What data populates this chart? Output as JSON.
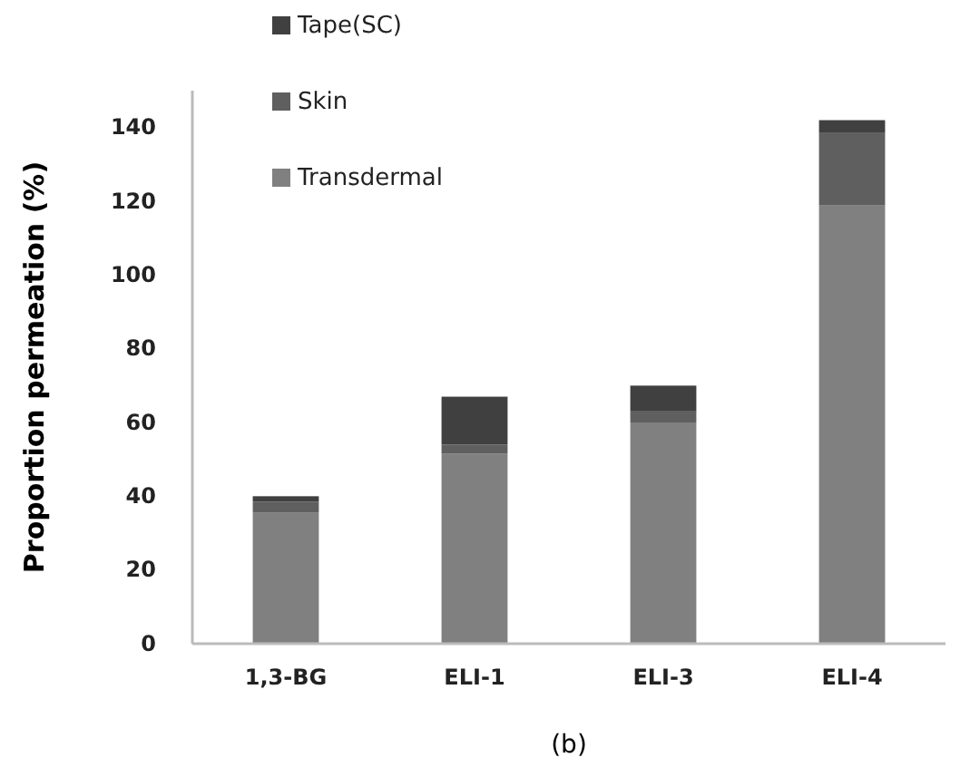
{
  "chart_data": {
    "type": "bar",
    "stacked": true,
    "ylabel": "Proportion permeation (%)",
    "categories": [
      "1,3-BG",
      "ELI-1",
      "ELI-3",
      "ELI-4"
    ],
    "series": [
      {
        "name": "Transdermal",
        "color": "#808080",
        "values": [
          35.5,
          51.5,
          60,
          119
        ]
      },
      {
        "name": "Skin",
        "color": "#5f5f5f",
        "values": [
          3,
          2.5,
          3,
          19.5
        ]
      },
      {
        "name": "Tape(SC)",
        "color": "#404040",
        "values": [
          1.5,
          13,
          7,
          3.5
        ]
      }
    ],
    "ylim": [
      0,
      150
    ],
    "yticks": [
      0,
      20,
      40,
      60,
      80,
      100,
      120,
      140
    ],
    "grid": false,
    "legend": "top left",
    "annotations": [
      "(b)"
    ]
  }
}
